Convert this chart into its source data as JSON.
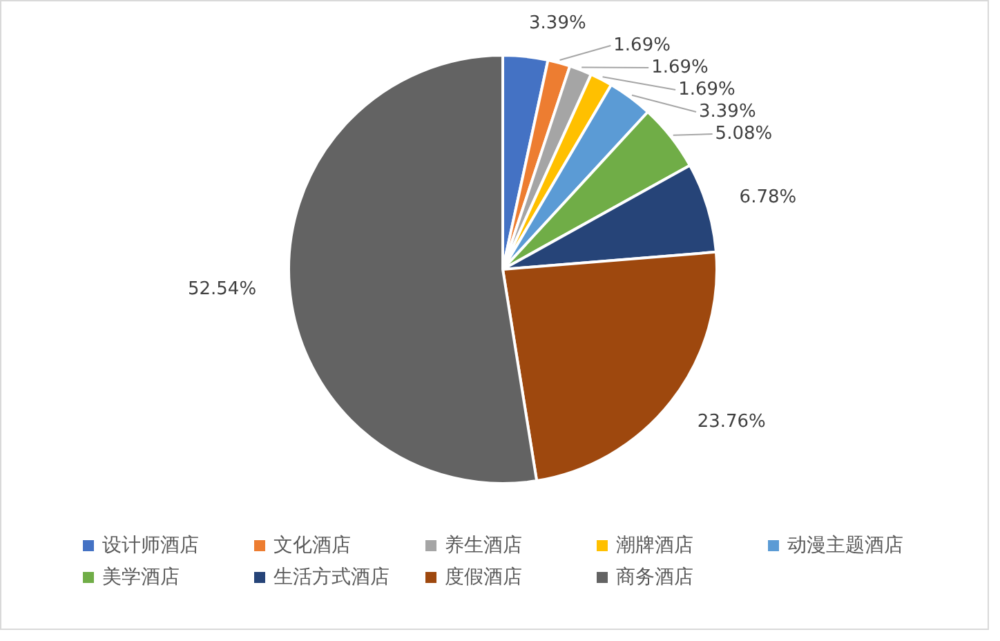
{
  "chart_data": {
    "type": "pie",
    "categories": [
      "设计师酒店",
      "文化酒店",
      "养生酒店",
      "潮牌酒店",
      "动漫主题酒店",
      "美学酒店",
      "生活方式酒店",
      "度假酒店",
      "商务酒店"
    ],
    "values": [
      3.39,
      1.69,
      1.69,
      1.69,
      3.39,
      5.08,
      6.78,
      23.76,
      52.54
    ],
    "colors": [
      "#4472c4",
      "#ed7d31",
      "#a5a5a5",
      "#ffc000",
      "#5b9bd5",
      "#70ad47",
      "#264478",
      "#9e480e",
      "#636363"
    ],
    "value_labels": [
      "3.39%",
      "1.69%",
      "1.69%",
      "1.69%",
      "3.39%",
      "5.08%",
      "6.78%",
      "23.76%",
      "52.54%"
    ],
    "legend": "bottom"
  }
}
